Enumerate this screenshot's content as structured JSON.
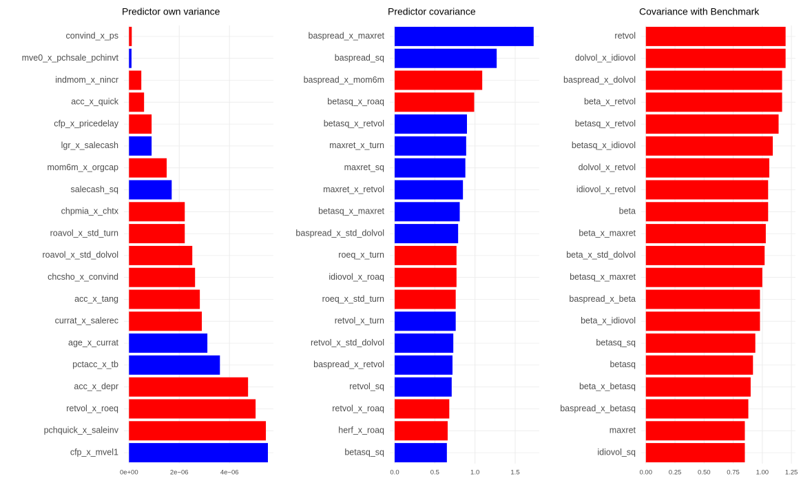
{
  "chart_data": [
    {
      "type": "barh",
      "title": "Predictor own variance",
      "categories": [
        "convind_x_ps",
        "mve0_x_pchsale_pchinvt",
        "indmom_x_nincr",
        "acc_x_quick",
        "cfp_x_pricedelay",
        "lgr_x_salecash",
        "mom6m_x_orgcap",
        "salecash_sq",
        "chpmia_x_chtx",
        "roavol_x_std_turn",
        "roavol_x_std_dolvol",
        "chcsho_x_convind",
        "acc_x_tang",
        "currat_x_salerec",
        "age_x_currat",
        "pctacc_x_tb",
        "acc_x_depr",
        "retvol_x_roeq",
        "pchquick_x_saleinv",
        "cfp_x_mvel1"
      ],
      "values": [
        1.1e-07,
        1e-07,
        4.9e-07,
        6e-07,
        9e-07,
        9e-07,
        1.5e-06,
        1.7e-06,
        2.22e-06,
        2.22e-06,
        2.52e-06,
        2.63e-06,
        2.82e-06,
        2.9e-06,
        3.12e-06,
        3.62e-06,
        4.74e-06,
        5.04e-06,
        5.45e-06,
        5.53e-06
      ],
      "colors": [
        "#ff0000",
        "#0000ff",
        "#ff0000",
        "#ff0000",
        "#ff0000",
        "#0000ff",
        "#ff0000",
        "#0000ff",
        "#ff0000",
        "#ff0000",
        "#ff0000",
        "#ff0000",
        "#ff0000",
        "#ff0000",
        "#0000ff",
        "#0000ff",
        "#ff0000",
        "#ff0000",
        "#ff0000",
        "#0000ff"
      ],
      "xlim": [
        -2e-07,
        5.75e-06
      ],
      "xticks": [
        {
          "value": 0,
          "label": "0e+00"
        },
        {
          "value": 2e-06,
          "label": "2e−06"
        },
        {
          "value": 4e-06,
          "label": "4e−06"
        }
      ],
      "grid": true
    },
    {
      "type": "barh",
      "title": "Predictor covariance",
      "categories": [
        "baspread_x_maxret",
        "baspread_sq",
        "baspread_x_mom6m",
        "betasq_x_roaq",
        "betasq_x_retvol",
        "maxret_x_turn",
        "maxret_sq",
        "maxret_x_retvol",
        "betasq_x_maxret",
        "baspread_x_std_dolvol",
        "roeq_x_turn",
        "idiovol_x_roaq",
        "roeq_x_std_turn",
        "retvol_x_turn",
        "retvol_x_std_dolvol",
        "baspread_x_retvol",
        "retvol_sq",
        "retvol_x_roaq",
        "herf_x_roaq",
        "betasq_sq"
      ],
      "values": [
        1.73,
        1.27,
        1.09,
        0.99,
        0.9,
        0.89,
        0.88,
        0.85,
        0.81,
        0.79,
        0.77,
        0.77,
        0.76,
        0.76,
        0.73,
        0.72,
        0.71,
        0.68,
        0.66,
        0.65
      ],
      "colors": [
        "#0000ff",
        "#0000ff",
        "#ff0000",
        "#ff0000",
        "#0000ff",
        "#0000ff",
        "#0000ff",
        "#0000ff",
        "#0000ff",
        "#0000ff",
        "#ff0000",
        "#ff0000",
        "#ff0000",
        "#0000ff",
        "#0000ff",
        "#0000ff",
        "#0000ff",
        "#ff0000",
        "#ff0000",
        "#0000ff"
      ],
      "xlim": [
        -0.06,
        1.8
      ],
      "xticks": [
        {
          "value": 0,
          "label": "0.0"
        },
        0.5,
        {
          "value": 1,
          "label": "1.0"
        },
        1.5
      ],
      "grid": true
    },
    {
      "type": "barh",
      "title": "Covariance with Benchmark",
      "categories": [
        "retvol",
        "dolvol_x_idiovol",
        "baspread_x_dolvol",
        "beta_x_retvol",
        "betasq_x_retvol",
        "betasq_x_idiovol",
        "dolvol_x_retvol",
        "idiovol_x_retvol",
        "beta",
        "beta_x_maxret",
        "beta_x_std_dolvol",
        "betasq_x_maxret",
        "baspread_x_beta",
        "beta_x_idiovol",
        "betasq_sq",
        "betasq",
        "beta_x_betasq",
        "baspread_x_betasq",
        "maxret",
        "idiovol_sq"
      ],
      "values": [
        1.2,
        1.2,
        1.17,
        1.17,
        1.14,
        1.09,
        1.06,
        1.05,
        1.05,
        1.03,
        1.02,
        1.0,
        0.98,
        0.98,
        0.94,
        0.92,
        0.9,
        0.88,
        0.85,
        0.85
      ],
      "colors": [
        "#ff0000",
        "#ff0000",
        "#ff0000",
        "#ff0000",
        "#ff0000",
        "#ff0000",
        "#ff0000",
        "#ff0000",
        "#ff0000",
        "#ff0000",
        "#ff0000",
        "#ff0000",
        "#ff0000",
        "#ff0000",
        "#ff0000",
        "#ff0000",
        "#ff0000",
        "#ff0000",
        "#ff0000",
        "#ff0000"
      ],
      "xlim": [
        -0.04,
        1.285
      ],
      "xticks": [
        {
          "value": 0,
          "label": "0.00"
        },
        0.25,
        {
          "value": 0.5,
          "label": "0.50"
        },
        0.75,
        {
          "value": 1,
          "label": "1.00"
        },
        {
          "value": 1.25,
          "label": "1.25"
        }
      ],
      "grid": true
    }
  ]
}
